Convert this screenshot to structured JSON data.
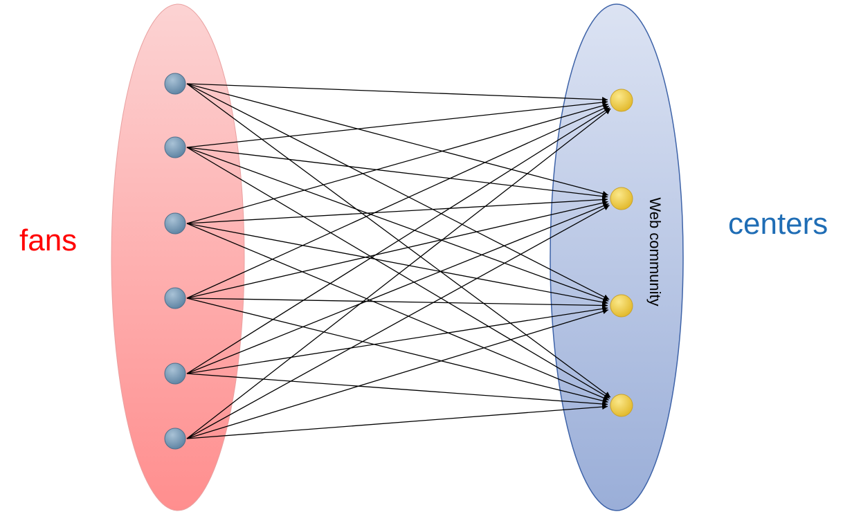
{
  "labels": {
    "left": "fans",
    "right": "centers",
    "community": "Web community"
  },
  "colors": {
    "left_label": "#ff0000",
    "right_label": "#1f6db5",
    "left_ellipse_top": "#fcd3d3",
    "left_ellipse_bottom": "#ff8e8e",
    "right_ellipse_top": "#dce3f3",
    "right_ellipse_bottom": "#9aaed8",
    "right_ellipse_stroke": "#3e63a8",
    "fan_node": "#6f93b1",
    "center_node": "#f2cf45",
    "edge": "#000000"
  },
  "graph": {
    "fans": [
      "fan-1",
      "fan-2",
      "fan-3",
      "fan-4",
      "fan-5",
      "fan-6"
    ],
    "centers": [
      "center-1",
      "center-2",
      "center-3",
      "center-4"
    ],
    "edges": "complete-bipartite"
  }
}
